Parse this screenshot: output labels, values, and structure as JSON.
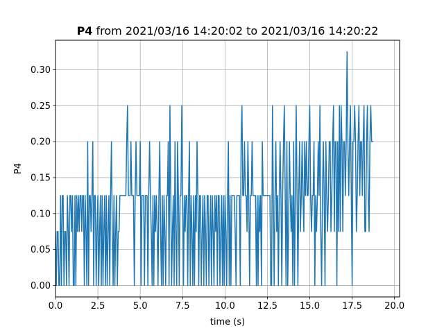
{
  "chart_data": {
    "type": "line",
    "title_bold": "P4",
    "title_rest": " from 2021/03/16 14:20:02 to 2021/03/16 14:20:22",
    "xlabel": "time (s)",
    "ylabel": "P4",
    "xlim": [
      0.0,
      20.3
    ],
    "ylim": [
      -0.016,
      0.341
    ],
    "xticks": [
      0.0,
      2.5,
      5.0,
      7.5,
      10.0,
      12.5,
      15.0,
      17.5,
      20.0
    ],
    "xtick_labels": [
      "0.0",
      "2.5",
      "5.0",
      "7.5",
      "10.0",
      "12.5",
      "15.0",
      "17.5",
      "20.0"
    ],
    "yticks": [
      0.0,
      0.05,
      0.1,
      0.15,
      0.2,
      0.25,
      0.3
    ],
    "ytick_labels": [
      "0.00",
      "0.05",
      "0.10",
      "0.15",
      "0.20",
      "0.25",
      "0.30"
    ],
    "grid": true,
    "series_color": "#1f77b4",
    "sample_period_s": 0.05,
    "series": [
      {
        "values": [
          0.075,
          0.0,
          0.075,
          0.075,
          0.0,
          0.0,
          0.125,
          0.0,
          0.125,
          0.125,
          0.0,
          0.075,
          0.075,
          0.0,
          0.125,
          0.075,
          0.0,
          0.125,
          0.125,
          0.075,
          0.125,
          0.0,
          0.0,
          0.125,
          0.0,
          0.125,
          0.075,
          0.125,
          0.075,
          0.125,
          0.125,
          0.075,
          0.125,
          0.125,
          0.0,
          0.125,
          0.075,
          0.0,
          0.2,
          0.0,
          0.125,
          0.125,
          0.075,
          0.125,
          0.2,
          0.0,
          0.125,
          0.125,
          0.0,
          0.075,
          0.125,
          0.0,
          0.075,
          0.125,
          0.0,
          0.125,
          0.0,
          0.075,
          0.125,
          0.0,
          0.125,
          0.0,
          0.075,
          0.125,
          0.0,
          0.125,
          0.2,
          0.075,
          0.0,
          0.125,
          0.0,
          0.075,
          0.125,
          0.0,
          0.075,
          0.075,
          0.125,
          0.125,
          0.125,
          0.125,
          0.125,
          0.125,
          0.125,
          0.125,
          0.2,
          0.25,
          0.125,
          0.125,
          0.125,
          0.2,
          0.125,
          0.125,
          0.125,
          0.0,
          0.125,
          0.2,
          0.125,
          0.125,
          0.125,
          0.125,
          0.2,
          0.0,
          0.125,
          0.125,
          0.125,
          0.0,
          0.125,
          0.125,
          0.125,
          0.0,
          0.125,
          0.2,
          0.125,
          0.075,
          0.0,
          0.125,
          0.0,
          0.125,
          0.075,
          0.125,
          0.075,
          0.0,
          0.125,
          0.2,
          0.075,
          0.0,
          0.125,
          0.0,
          0.125,
          0.075,
          0.0,
          0.125,
          0.125,
          0.2,
          0.0,
          0.25,
          0.125,
          0.0,
          0.075,
          0.125,
          0.0,
          0.2,
          0.075,
          0.0,
          0.2,
          0.125,
          0.0,
          0.125,
          0.125,
          0.25,
          0.125,
          0.0,
          0.125,
          0.075,
          0.125,
          0.125,
          0.0,
          0.125,
          0.2,
          0.0,
          0.125,
          0.075,
          0.0,
          0.125,
          0.0,
          0.125,
          0.075,
          0.2,
          0.125,
          0.0,
          0.125,
          0.125,
          0.0,
          0.075,
          0.125,
          0.0,
          0.125,
          0.075,
          0.0,
          0.125,
          0.125,
          0.0,
          0.075,
          0.125,
          0.0,
          0.125,
          0.075,
          0.0,
          0.125,
          0.075,
          0.125,
          0.0,
          0.125,
          0.125,
          0.0,
          0.075,
          0.125,
          0.0,
          0.125,
          0.0,
          0.125,
          0.075,
          0.0,
          0.125,
          0.2,
          0.0,
          0.125,
          0.0,
          0.125,
          0.125,
          0.125,
          0.125,
          0.075,
          0.0,
          0.125,
          0.125,
          0.125,
          0.125,
          0.0,
          0.2,
          0.25,
          0.125,
          0.125,
          0.2,
          0.125,
          0.125,
          0.075,
          0.2,
          0.125,
          0.0,
          0.125,
          0.125,
          0.2,
          0.125,
          0.125,
          0.125,
          0.125,
          0.0,
          0.125,
          0.0,
          0.125,
          0.075,
          0.125,
          0.0,
          0.2,
          0.125,
          0.125,
          0.125,
          0.125,
          0.125,
          0.125,
          0.125,
          0.125,
          0.125,
          0.0,
          0.0,
          0.25,
          0.125,
          0.0,
          0.125,
          0.2,
          0.075,
          0.125,
          0.0,
          0.125,
          0.2,
          0.125,
          0.0,
          0.125,
          0.2,
          0.25,
          0.125,
          0.0,
          0.2,
          0.0,
          0.075,
          0.2,
          0.125,
          0.075,
          0.125,
          0.0,
          0.2,
          0.0,
          0.125,
          0.25,
          0.125,
          0.0,
          0.125,
          0.2,
          0.075,
          0.125,
          0.2,
          0.125,
          0.075,
          0.2,
          0.125,
          0.2,
          0.125,
          0.125,
          0.2,
          0.25,
          0.125,
          0.075,
          0.125,
          0.125,
          0.2,
          0.0,
          0.125,
          0.075,
          0.125,
          0.2,
          0.125,
          0.25,
          0.075,
          0.0,
          0.125,
          0.2,
          0.125,
          0.0,
          0.2,
          0.125,
          0.075,
          0.125,
          0.2,
          0.2,
          0.075,
          0.125,
          0.2,
          0.25,
          0.075,
          0.2,
          0.2,
          0.0,
          0.2,
          0.075,
          0.25,
          0.075,
          0.25,
          0.2,
          0.075,
          0.2,
          0.2,
          0.125,
          0.2,
          0.325,
          0.2,
          0.125,
          0.2,
          0.25,
          0.125,
          0.0,
          0.2,
          0.2,
          0.25,
          0.2,
          0.075,
          0.125,
          0.2,
          0.25,
          0.125,
          0.2,
          0.2,
          0.125,
          0.2,
          0.25,
          0.075,
          0.075,
          0.2,
          0.25,
          0.125,
          0.075,
          0.2,
          0.25,
          0.2,
          0.2,
          0.2
        ]
      }
    ]
  }
}
